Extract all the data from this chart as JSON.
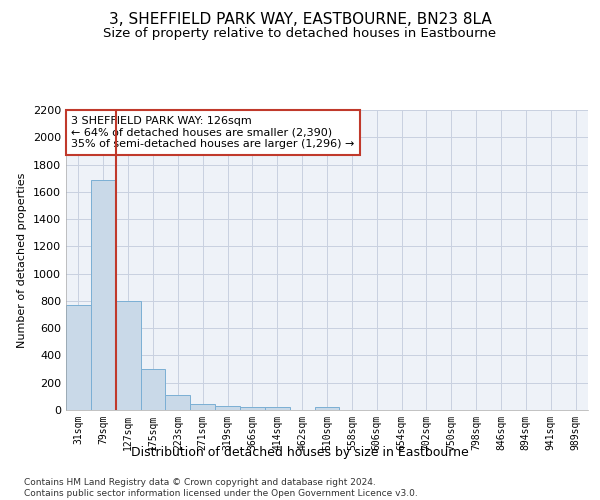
{
  "title": "3, SHEFFIELD PARK WAY, EASTBOURNE, BN23 8LA",
  "subtitle": "Size of property relative to detached houses in Eastbourne",
  "xlabel": "Distribution of detached houses by size in Eastbourne",
  "ylabel": "Number of detached properties",
  "categories": [
    "31sqm",
    "79sqm",
    "127sqm",
    "175sqm",
    "223sqm",
    "271sqm",
    "319sqm",
    "366sqm",
    "414sqm",
    "462sqm",
    "510sqm",
    "558sqm",
    "606sqm",
    "654sqm",
    "702sqm",
    "750sqm",
    "798sqm",
    "846sqm",
    "894sqm",
    "941sqm",
    "989sqm"
  ],
  "values": [
    770,
    1690,
    800,
    300,
    110,
    45,
    33,
    25,
    22,
    0,
    25,
    0,
    0,
    0,
    0,
    0,
    0,
    0,
    0,
    0,
    0
  ],
  "bar_color": "#c9d9e8",
  "bar_edge_color": "#7bafd4",
  "vline_x": 1.5,
  "vline_color": "#c0392b",
  "annotation_text": "3 SHEFFIELD PARK WAY: 126sqm\n← 64% of detached houses are smaller (2,390)\n35% of semi-detached houses are larger (1,296) →",
  "annotation_box_color": "#c0392b",
  "ylim": [
    0,
    2200
  ],
  "yticks": [
    0,
    200,
    400,
    600,
    800,
    1000,
    1200,
    1400,
    1600,
    1800,
    2000,
    2200
  ],
  "grid_color": "#c8d0e0",
  "bg_color": "#eef2f8",
  "footnote": "Contains HM Land Registry data © Crown copyright and database right 2024.\nContains public sector information licensed under the Open Government Licence v3.0.",
  "title_fontsize": 11,
  "subtitle_fontsize": 9.5
}
